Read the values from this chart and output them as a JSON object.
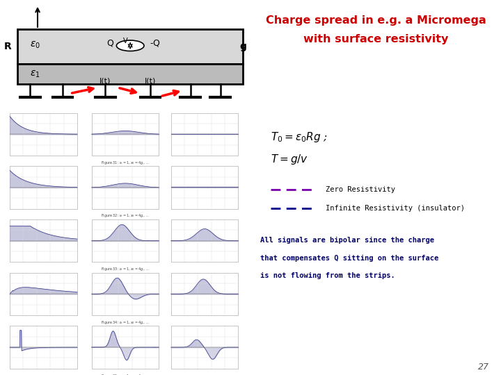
{
  "title_line1": "Charge spread in e.g. a Micromega",
  "title_line2": "with surface resistivity",
  "title_color": "#cc0000",
  "title_fontsize": 11.5,
  "formula1": "$T_0 = \\varepsilon_0 Rg$ ;",
  "formula2": "$T = g/v$",
  "legend_items": [
    {
      "label": "Zero Resistivity",
      "color": "#7700aa",
      "linestyle": "--"
    },
    {
      "label": "Infinite Resistivity (insulator)",
      "color": "#000088",
      "linestyle": "--"
    }
  ],
  "body_text_line1": "All signals are bipolar since the charge",
  "body_text_line2": "that compensates Q sitting on the surface",
  "body_text_line3": "is not flowing from the strips.",
  "body_text_color": "#000066",
  "body_text_fontsize": 7.5,
  "page_number": "27",
  "bg_color": "#ffffff"
}
